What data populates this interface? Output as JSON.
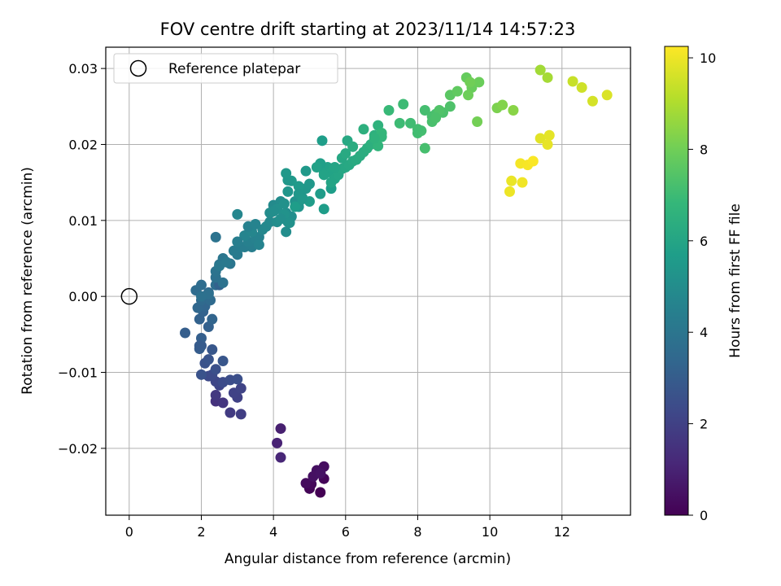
{
  "chart_data": {
    "type": "scatter",
    "title": "FOV centre drift starting at 2023/11/14 14:57:23",
    "xlabel": "Angular distance from reference (arcmin)",
    "ylabel": "Rotation from reference (arcmin)",
    "xlim": [
      -0.65,
      13.9
    ],
    "ylim": [
      -0.0288,
      0.0328
    ],
    "xticks": [
      0,
      2,
      4,
      6,
      8,
      10,
      12
    ],
    "xtick_labels": [
      "0",
      "2",
      "4",
      "6",
      "8",
      "10",
      "12"
    ],
    "yticks": [
      -0.02,
      -0.01,
      0.0,
      0.01,
      0.02,
      0.03
    ],
    "ytick_labels": [
      "−0.02",
      "−0.01",
      "0.00",
      "0.01",
      "0.02",
      "0.03"
    ],
    "grid": true,
    "legend": {
      "label": "Reference platepar",
      "position": "top-left"
    },
    "reference_point": {
      "x": 0,
      "y": 0
    },
    "colorbar": {
      "label": "Hours from first FF file",
      "range": [
        0,
        10.25
      ],
      "ticks": [
        0,
        2,
        4,
        6,
        8,
        10
      ],
      "tick_labels": [
        "0",
        "2",
        "4",
        "6",
        "8",
        "10"
      ],
      "colormap": "viridis",
      "colors": [
        "#440154",
        "#482878",
        "#3e4989",
        "#31688e",
        "#26828e",
        "#1f9e89",
        "#35b779",
        "#6ece58",
        "#b5de2b",
        "#fde725"
      ]
    },
    "series": [
      {
        "x": [
          5.3,
          5.0,
          5.4,
          5.05,
          5.3,
          4.9,
          5.4,
          5.2,
          5.1,
          5.3,
          4.2,
          4.1,
          4.2
        ],
        "y": [
          -0.0258,
          -0.0253,
          -0.024,
          -0.0247,
          -0.0232,
          -0.0246,
          -0.0224,
          -0.0229,
          -0.0237,
          -0.0233,
          -0.0174,
          -0.0193,
          -0.0212
        ],
        "t": [
          0.0,
          0.1,
          0.15,
          0.2,
          0.25,
          0.3,
          0.35,
          0.4,
          0.45,
          0.5,
          0.9,
          1.0,
          1.1
        ]
      },
      {
        "x": [
          2.4,
          2.6,
          2.4,
          2.8,
          3.1,
          3.0,
          2.9,
          3.1,
          2.5,
          2.4,
          2.2,
          2.3,
          2.6,
          2.8,
          3.0,
          2.4,
          2.1,
          2.0,
          2.2,
          2.6,
          2.3,
          2.0,
          1.95
        ],
        "y": [
          -0.0138,
          -0.014,
          -0.013,
          -0.0153,
          -0.0155,
          -0.0133,
          -0.0127,
          -0.0121,
          -0.0117,
          -0.0112,
          -0.0105,
          -0.0103,
          -0.0113,
          -0.011,
          -0.0109,
          -0.0096,
          -0.0088,
          -0.0103,
          -0.0083,
          -0.0085,
          -0.007,
          -0.0065,
          -0.0069
        ],
        "t": [
          1.5,
          1.6,
          1.7,
          1.8,
          1.9,
          2.0,
          2.05,
          2.1,
          2.15,
          2.2,
          2.3,
          2.35,
          2.4,
          2.45,
          2.5,
          2.55,
          2.6,
          2.65,
          2.7,
          2.75,
          2.8,
          2.9,
          3.0
        ]
      },
      {
        "x": [
          1.55,
          2.0,
          2.2,
          1.95,
          2.05,
          2.3,
          2.1,
          1.9,
          2.2,
          2.0,
          2.25,
          1.85,
          2.0,
          2.4,
          2.2,
          2.0,
          2.5,
          1.95
        ],
        "y": [
          -0.0048,
          -0.0055,
          -0.004,
          -0.003,
          -0.002,
          -0.003,
          -0.0013,
          -0.0015,
          0.0005,
          -0.0005,
          -0.0005,
          0.0008,
          0.0015,
          0.0015,
          0.0003,
          0.0,
          0.0015,
          -0.0065
        ],
        "t": [
          3.05,
          3.1,
          3.15,
          3.2,
          3.25,
          3.3,
          3.35,
          3.4,
          3.45,
          3.5,
          3.55,
          3.6,
          3.65,
          3.7,
          3.75,
          3.8,
          3.2,
          2.95
        ]
      },
      {
        "x": [
          2.4,
          2.6,
          2.4,
          2.5,
          2.8,
          2.6,
          2.5,
          2.7,
          3.0,
          2.9,
          3.1,
          3.2,
          3.4,
          3.3,
          3.5,
          3.6,
          3.6,
          3.2,
          3.4,
          3.7,
          3.8,
          3.9,
          3.0,
          3.3,
          3.5,
          3.0,
          2.4
        ],
        "y": [
          0.0025,
          0.0018,
          0.0033,
          0.0042,
          0.0043,
          0.005,
          0.004,
          0.0045,
          0.0055,
          0.006,
          0.0065,
          0.0065,
          0.0065,
          0.0072,
          0.0075,
          0.0078,
          0.0068,
          0.008,
          0.0085,
          0.0088,
          0.0092,
          0.0098,
          0.0072,
          0.0092,
          0.0095,
          0.0108,
          0.0078
        ],
        "t": [
          3.8,
          3.85,
          3.9,
          3.95,
          4.0,
          4.05,
          4.1,
          4.15,
          4.2,
          4.25,
          4.3,
          4.35,
          4.4,
          4.45,
          4.5,
          4.55,
          4.6,
          4.65,
          4.7,
          4.75,
          4.8,
          4.85,
          4.4,
          4.5,
          4.6,
          4.7,
          3.9
        ]
      },
      {
        "x": [
          4.0,
          4.2,
          4.35,
          4.5,
          4.1,
          4.3,
          4.6,
          4.8,
          4.7,
          4.4,
          4.9,
          5.0,
          4.5,
          4.7,
          5.0,
          4.6,
          4.35,
          4.4,
          4.1,
          4.3,
          3.9,
          4.2,
          4.0,
          4.45,
          4.7,
          4.8,
          4.9,
          5.3,
          5.4,
          5.6
        ],
        "y": [
          0.012,
          0.0125,
          0.011,
          0.0105,
          0.0115,
          0.0122,
          0.0125,
          0.013,
          0.0118,
          0.0138,
          0.0142,
          0.0148,
          0.0152,
          0.0145,
          0.0125,
          0.0118,
          0.0085,
          0.0098,
          0.0098,
          0.0108,
          0.011,
          0.0102,
          0.0112,
          0.0097,
          0.0135,
          0.0128,
          0.0165,
          0.0135,
          0.0115,
          0.0142
        ],
        "t": [
          4.9,
          4.95,
          5.0,
          5.05,
          5.1,
          5.15,
          5.2,
          5.25,
          5.3,
          5.35,
          5.4,
          5.45,
          5.5,
          5.55,
          5.6,
          5.65,
          5.0,
          5.1,
          5.0,
          5.2,
          4.95,
          5.1,
          5.05,
          5.15,
          5.4,
          5.45,
          5.5,
          5.6,
          5.65,
          5.7
        ]
      },
      {
        "x": [
          5.4,
          5.5,
          5.6,
          5.7,
          5.8,
          5.9,
          6.0,
          6.1,
          6.2,
          6.3,
          6.4,
          6.5,
          6.6,
          6.7,
          5.3,
          5.4,
          5.6,
          5.9,
          6.0,
          6.05,
          6.2,
          6.5,
          6.8,
          6.9,
          5.35,
          4.4,
          4.35,
          5.7,
          5.2
        ],
        "y": [
          0.0165,
          0.017,
          0.0163,
          0.0155,
          0.016,
          0.0168,
          0.017,
          0.0173,
          0.0178,
          0.018,
          0.0185,
          0.019,
          0.0195,
          0.02,
          0.0175,
          0.016,
          0.015,
          0.0182,
          0.0188,
          0.0205,
          0.0197,
          0.022,
          0.0212,
          0.0225,
          0.0205,
          0.0153,
          0.0162,
          0.017,
          0.017
        ],
        "t": [
          5.8,
          5.85,
          5.9,
          5.95,
          6.0,
          6.05,
          6.1,
          6.15,
          6.2,
          6.25,
          6.3,
          6.35,
          6.4,
          6.45,
          5.75,
          5.9,
          5.95,
          6.1,
          6.2,
          6.15,
          6.3,
          6.45,
          6.5,
          6.55,
          5.7,
          5.4,
          5.45,
          5.95,
          5.85
        ]
      },
      {
        "x": [
          7.0,
          7.2,
          7.6,
          7.8,
          8.0,
          8.2,
          8.4,
          8.5,
          8.7,
          8.9,
          8.1,
          8.2,
          8.4,
          8.6,
          6.9,
          7.0,
          8.5,
          8.0,
          7.5,
          6.8
        ],
        "y": [
          0.0215,
          0.0245,
          0.0253,
          0.0228,
          0.0215,
          0.0245,
          0.0237,
          0.024,
          0.0242,
          0.025,
          0.0218,
          0.0195,
          0.023,
          0.0245,
          0.0198,
          0.021,
          0.0235,
          0.022,
          0.0228,
          0.0208
        ],
        "t": [
          6.8,
          6.9,
          7.0,
          7.05,
          7.1,
          7.15,
          7.2,
          7.25,
          7.3,
          7.35,
          7.15,
          7.2,
          7.25,
          7.4,
          6.7,
          6.75,
          7.3,
          7.1,
          7.0,
          6.6
        ]
      },
      {
        "x": [
          8.9,
          9.1,
          9.35,
          9.5,
          9.7,
          9.4,
          9.45,
          9.65,
          10.2,
          10.35,
          10.65,
          11.4,
          11.6
        ],
        "y": [
          0.0265,
          0.027,
          0.0288,
          0.0275,
          0.0282,
          0.0265,
          0.0282,
          0.023,
          0.0248,
          0.0252,
          0.0245,
          0.0298,
          0.0288
        ],
        "t": [
          7.6,
          7.7,
          7.8,
          7.85,
          7.9,
          7.95,
          8.0,
          8.05,
          8.2,
          8.3,
          8.4,
          8.8,
          8.85
        ]
      },
      {
        "x": [
          12.3,
          12.55,
          12.85,
          13.25,
          11.4,
          11.65,
          11.6,
          10.6,
          10.55,
          10.9,
          10.85,
          11.05,
          11.2
        ],
        "y": [
          0.0283,
          0.0275,
          0.0257,
          0.0265,
          0.0208,
          0.0212,
          0.02,
          0.0152,
          0.0138,
          0.015,
          0.0175,
          0.0173,
          0.0178
        ],
        "t": [
          9.4,
          9.5,
          9.6,
          9.7,
          9.8,
          9.85,
          9.9,
          9.95,
          10.0,
          10.05,
          10.1,
          10.15,
          10.2
        ]
      }
    ]
  }
}
